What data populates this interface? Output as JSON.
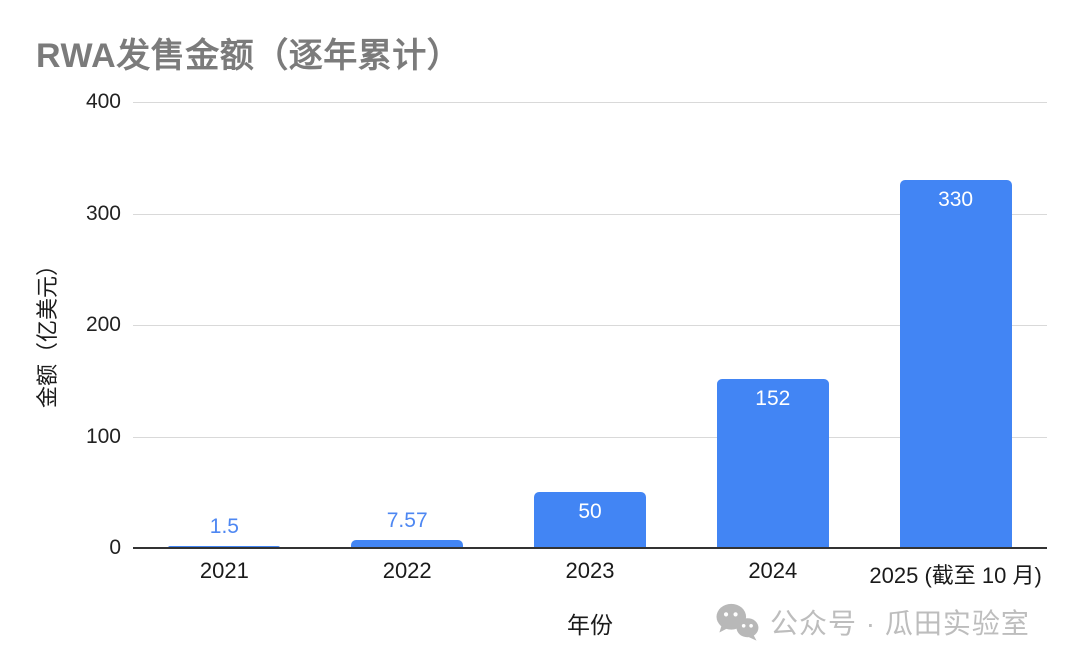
{
  "title": "RWA发售金额（逐年累计）",
  "chart_data": {
    "type": "bar",
    "title": "RWA发售金额（逐年累计）",
    "categories": [
      "2021",
      "2022",
      "2023",
      "2024",
      "2025 (截至 10 月)"
    ],
    "values": [
      1.5,
      7.57,
      50,
      152,
      330
    ],
    "value_labels": [
      "1.5",
      "7.57",
      "50",
      "152",
      "330"
    ],
    "xlabel": "年份",
    "ylabel": "金额（亿美元）",
    "ylim": [
      0,
      400
    ],
    "yticks": [
      0,
      100,
      200,
      300,
      400
    ],
    "grid": true,
    "legend": false,
    "bar_color": "#4285f4",
    "label_color_inside": "#ffffff",
    "label_color_outside": "#4e87f2",
    "gridline_color": "#d9d9d9",
    "axis_line_color": "#333333",
    "title_color": "#7b7b7b"
  },
  "watermark": {
    "icon": "wechat-icon",
    "text": "公众号 · 瓜田实验室"
  }
}
